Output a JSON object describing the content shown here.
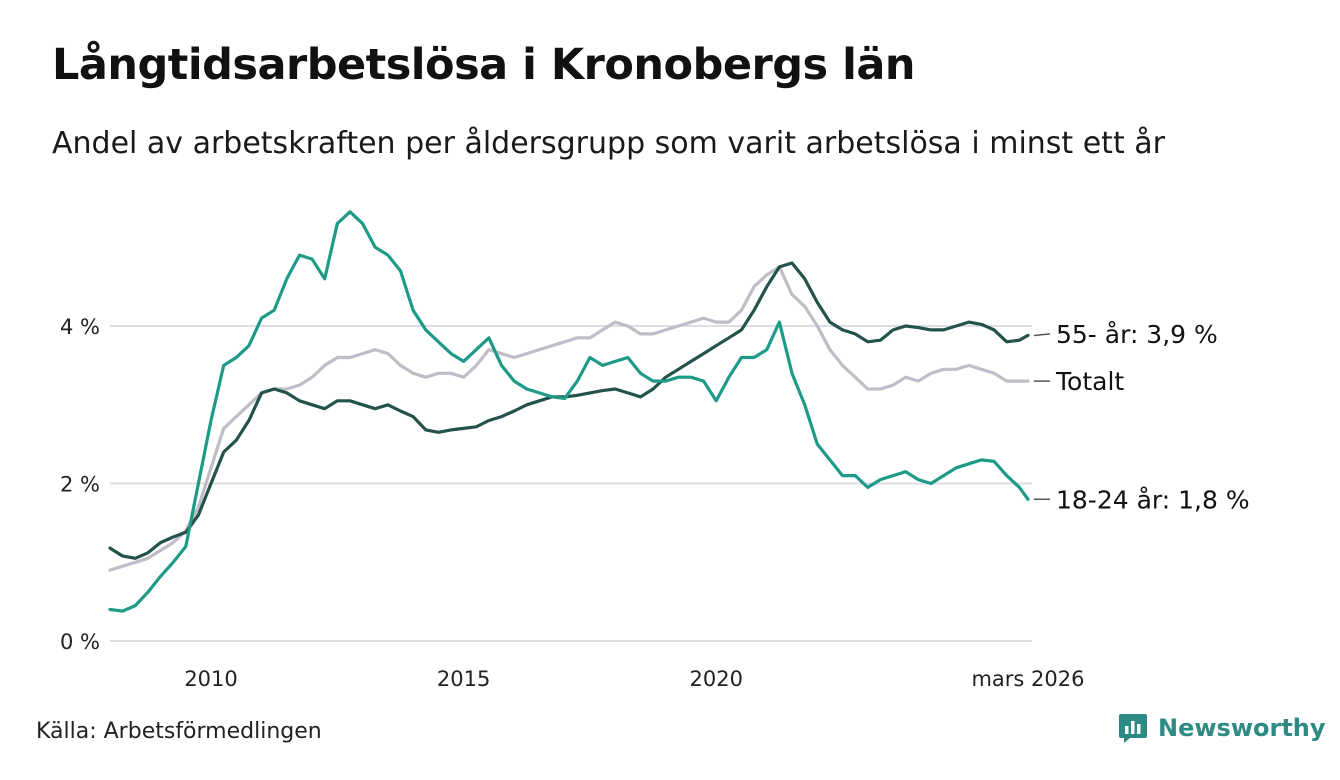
{
  "title": "Långtidsarbetslösa i Kronobergs län",
  "subtitle": "Andel av arbetskraften per åldersgrupp som varit arbetslösa i minst ett år",
  "source": "Källa: Arbetsförmedlingen",
  "brand": "Newsworthy",
  "chart_data": {
    "type": "line",
    "title": "Långtidsarbetslösa i Kronobergs län",
    "ylabel": "",
    "xlabel": "",
    "ylim": [
      0,
      5.6
    ],
    "xlim": [
      2008.0,
      2026.25
    ],
    "yticks": [
      {
        "value": 0,
        "label": "0 %"
      },
      {
        "value": 2,
        "label": "2 %"
      },
      {
        "value": 4,
        "label": "4 %"
      }
    ],
    "xticks": [
      {
        "value": 2010,
        "label": "2010"
      },
      {
        "value": 2015,
        "label": "2015"
      },
      {
        "value": 2020,
        "label": "2020"
      },
      {
        "value": 2026.17,
        "label": "mars 2026"
      }
    ],
    "gridlines": true,
    "series": [
      {
        "name": "Totalt",
        "label": "Totalt",
        "color": "#c0bcc8",
        "x": [
          2008.0,
          2008.25,
          2008.5,
          2008.75,
          2009.0,
          2009.25,
          2009.5,
          2009.75,
          2010.0,
          2010.25,
          2010.5,
          2010.75,
          2011.0,
          2011.25,
          2011.5,
          2011.75,
          2012.0,
          2012.25,
          2012.5,
          2012.75,
          2013.0,
          2013.25,
          2013.5,
          2013.75,
          2014.0,
          2014.25,
          2014.5,
          2014.75,
          2015.0,
          2015.25,
          2015.5,
          2015.75,
          2016.0,
          2016.25,
          2016.5,
          2016.75,
          2017.0,
          2017.25,
          2017.5,
          2017.75,
          2018.0,
          2018.25,
          2018.5,
          2018.75,
          2019.0,
          2019.25,
          2019.5,
          2019.75,
          2020.0,
          2020.25,
          2020.5,
          2020.75,
          2021.0,
          2021.25,
          2021.5,
          2021.75,
          2022.0,
          2022.25,
          2022.5,
          2022.75,
          2023.0,
          2023.25,
          2023.5,
          2023.75,
          2024.0,
          2024.25,
          2024.5,
          2024.75,
          2025.0,
          2025.25,
          2025.5,
          2025.75,
          2026.0,
          2026.17
        ],
        "values": [
          0.9,
          0.95,
          1.0,
          1.05,
          1.15,
          1.25,
          1.4,
          1.7,
          2.2,
          2.7,
          2.85,
          3.0,
          3.15,
          3.2,
          3.2,
          3.25,
          3.35,
          3.5,
          3.6,
          3.6,
          3.65,
          3.7,
          3.65,
          3.5,
          3.4,
          3.35,
          3.4,
          3.4,
          3.35,
          3.5,
          3.7,
          3.65,
          3.6,
          3.65,
          3.7,
          3.75,
          3.8,
          3.85,
          3.85,
          3.95,
          4.05,
          4.0,
          3.9,
          3.9,
          3.95,
          4.0,
          4.05,
          4.1,
          4.05,
          4.05,
          4.2,
          4.5,
          4.65,
          4.75,
          4.4,
          4.25,
          4.0,
          3.7,
          3.5,
          3.35,
          3.2,
          3.2,
          3.25,
          3.35,
          3.3,
          3.4,
          3.45,
          3.45,
          3.5,
          3.45,
          3.4,
          3.3,
          3.3,
          3.3
        ],
        "end_value": "Totalt"
      },
      {
        "name": "55- år",
        "label": "55- år: 3,9 %",
        "color": "#23524b",
        "x": [
          2008.0,
          2008.25,
          2008.5,
          2008.75,
          2009.0,
          2009.25,
          2009.5,
          2009.75,
          2010.0,
          2010.25,
          2010.5,
          2010.75,
          2011.0,
          2011.25,
          2011.5,
          2011.75,
          2012.0,
          2012.25,
          2012.5,
          2012.75,
          2013.0,
          2013.25,
          2013.5,
          2013.75,
          2014.0,
          2014.25,
          2014.5,
          2014.75,
          2015.0,
          2015.25,
          2015.5,
          2015.75,
          2016.0,
          2016.25,
          2016.5,
          2016.75,
          2017.0,
          2017.25,
          2017.5,
          2017.75,
          2018.0,
          2018.25,
          2018.5,
          2018.75,
          2019.0,
          2019.25,
          2019.5,
          2019.75,
          2020.0,
          2020.25,
          2020.5,
          2020.75,
          2021.0,
          2021.25,
          2021.5,
          2021.75,
          2022.0,
          2022.25,
          2022.5,
          2022.75,
          2023.0,
          2023.25,
          2023.5,
          2023.75,
          2024.0,
          2024.25,
          2024.5,
          2024.75,
          2025.0,
          2025.25,
          2025.5,
          2025.75,
          2026.0,
          2026.17
        ],
        "values": [
          1.18,
          1.08,
          1.05,
          1.12,
          1.25,
          1.32,
          1.38,
          1.6,
          2.0,
          2.4,
          2.55,
          2.8,
          3.15,
          3.2,
          3.15,
          3.05,
          3.0,
          2.95,
          3.05,
          3.05,
          3.0,
          2.95,
          3.0,
          2.92,
          2.85,
          2.68,
          2.65,
          2.68,
          2.7,
          2.72,
          2.8,
          2.85,
          2.92,
          3.0,
          3.05,
          3.1,
          3.1,
          3.12,
          3.15,
          3.18,
          3.2,
          3.15,
          3.1,
          3.2,
          3.35,
          3.45,
          3.55,
          3.65,
          3.75,
          3.85,
          3.95,
          4.2,
          4.5,
          4.75,
          4.8,
          4.6,
          4.3,
          4.05,
          3.95,
          3.9,
          3.8,
          3.82,
          3.95,
          4.0,
          3.98,
          3.95,
          3.95,
          4.0,
          4.05,
          4.02,
          3.95,
          3.8,
          3.82,
          3.88
        ],
        "end_value": "3,9 %"
      },
      {
        "name": "18-24 år",
        "label": "18-24 år: 1,8 %",
        "color": "#1e9a88",
        "x": [
          2008.0,
          2008.25,
          2008.5,
          2008.75,
          2009.0,
          2009.25,
          2009.5,
          2009.75,
          2010.0,
          2010.25,
          2010.5,
          2010.75,
          2011.0,
          2011.25,
          2011.5,
          2011.75,
          2012.0,
          2012.25,
          2012.5,
          2012.75,
          2013.0,
          2013.25,
          2013.5,
          2013.75,
          2014.0,
          2014.25,
          2014.5,
          2014.75,
          2015.0,
          2015.25,
          2015.5,
          2015.75,
          2016.0,
          2016.25,
          2016.5,
          2016.75,
          2017.0,
          2017.25,
          2017.5,
          2017.75,
          2018.0,
          2018.25,
          2018.5,
          2018.75,
          2019.0,
          2019.25,
          2019.5,
          2019.75,
          2020.0,
          2020.25,
          2020.5,
          2020.75,
          2021.0,
          2021.25,
          2021.5,
          2021.75,
          2022.0,
          2022.25,
          2022.5,
          2022.75,
          2023.0,
          2023.25,
          2023.5,
          2023.75,
          2024.0,
          2024.25,
          2024.5,
          2024.75,
          2025.0,
          2025.25,
          2025.5,
          2025.75,
          2026.0,
          2026.17
        ],
        "values": [
          0.4,
          0.38,
          0.45,
          0.62,
          0.82,
          1.0,
          1.2,
          2.0,
          2.8,
          3.5,
          3.6,
          3.75,
          4.1,
          4.2,
          4.6,
          4.9,
          4.85,
          4.6,
          5.3,
          5.45,
          5.3,
          5.0,
          4.9,
          4.7,
          4.2,
          3.95,
          3.8,
          3.65,
          3.55,
          3.7,
          3.85,
          3.5,
          3.3,
          3.2,
          3.15,
          3.1,
          3.08,
          3.3,
          3.6,
          3.5,
          3.55,
          3.6,
          3.4,
          3.3,
          3.3,
          3.35,
          3.35,
          3.3,
          3.05,
          3.35,
          3.6,
          3.6,
          3.7,
          4.05,
          3.4,
          3.0,
          2.5,
          2.3,
          2.1,
          2.1,
          1.95,
          2.05,
          2.1,
          2.15,
          2.05,
          2.0,
          2.1,
          2.2,
          2.25,
          2.3,
          2.28,
          2.1,
          1.95,
          1.8
        ],
        "end_value": "1,8 %"
      }
    ]
  }
}
